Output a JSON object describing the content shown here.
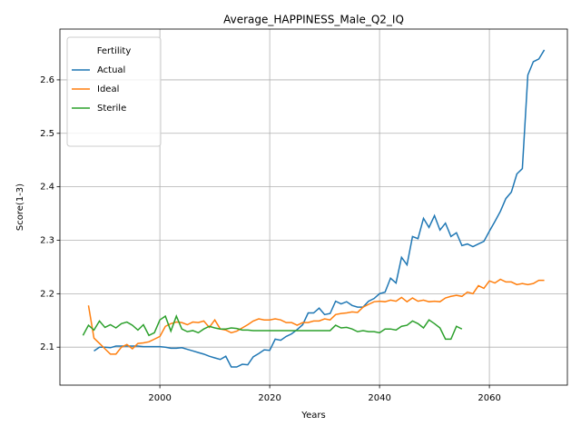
{
  "chart_data": {
    "type": "line",
    "title": "Average_HAPPINESS_Male_Q2_IQ",
    "xlabel": "Years",
    "ylabel": "Score(1-3)",
    "legend_title": "Fertility",
    "legend_loc": "upper left",
    "grid": true,
    "xlim": [
      1981.8,
      2074.2
    ],
    "ylim": [
      2.029,
      2.695
    ],
    "xticks": [
      2000,
      2020,
      2040,
      2060
    ],
    "yticks": [
      2.1,
      2.2,
      2.3,
      2.4,
      2.5,
      2.6
    ],
    "x": [
      1986,
      1987,
      1988,
      1989,
      1990,
      1991,
      1992,
      1993,
      1994,
      1995,
      1996,
      1997,
      1998,
      1999,
      2000,
      2001,
      2002,
      2003,
      2004,
      2005,
      2006,
      2007,
      2008,
      2009,
      2010,
      2011,
      2012,
      2013,
      2014,
      2015,
      2016,
      2017,
      2018,
      2019,
      2020,
      2021,
      2022,
      2023,
      2024,
      2025,
      2026,
      2027,
      2028,
      2029,
      2030,
      2031,
      2032,
      2033,
      2034,
      2035,
      2036,
      2037,
      2038,
      2039,
      2040,
      2041,
      2042,
      2043,
      2044,
      2045,
      2046,
      2047,
      2048,
      2049,
      2050,
      2051,
      2052,
      2053,
      2054,
      2055,
      2056,
      2057,
      2058,
      2059,
      2060,
      2061,
      2062,
      2063,
      2064,
      2065,
      2066,
      2067,
      2068,
      2069,
      2070
    ],
    "series": [
      {
        "name": "Actual",
        "color": "#1f77b4",
        "values": [
          null,
          null,
          2.093,
          2.1,
          2.1,
          2.099,
          2.102,
          2.102,
          2.102,
          2.102,
          2.102,
          2.101,
          2.101,
          2.101,
          2.101,
          2.1,
          2.098,
          2.098,
          2.099,
          2.096,
          2.093,
          2.09,
          2.087,
          2.083,
          2.08,
          2.077,
          2.083,
          2.063,
          2.063,
          2.068,
          2.067,
          2.082,
          2.088,
          2.095,
          2.094,
          2.115,
          2.113,
          2.12,
          2.125,
          2.133,
          2.142,
          2.164,
          2.164,
          2.173,
          2.161,
          2.163,
          2.186,
          2.181,
          2.185,
          2.178,
          2.175,
          2.175,
          2.186,
          2.191,
          2.2,
          2.203,
          2.229,
          2.22,
          2.268,
          2.254,
          2.307,
          2.303,
          2.341,
          2.324,
          2.346,
          2.319,
          2.332,
          2.307,
          2.314,
          2.29,
          2.293,
          2.288,
          2.293,
          2.298,
          2.317,
          2.335,
          2.354,
          2.378,
          2.39,
          2.424,
          2.434,
          2.609,
          2.634,
          2.639,
          2.656
        ]
      },
      {
        "name": "Ideal",
        "color": "#ff7f0e",
        "values": [
          null,
          2.178,
          2.117,
          2.107,
          2.097,
          2.087,
          2.087,
          2.1,
          2.105,
          2.097,
          2.107,
          2.108,
          2.11,
          2.115,
          2.12,
          2.139,
          2.144,
          2.147,
          2.146,
          2.142,
          2.147,
          2.146,
          2.149,
          2.137,
          2.151,
          2.134,
          2.132,
          2.127,
          2.13,
          2.136,
          2.142,
          2.149,
          2.153,
          2.151,
          2.151,
          2.153,
          2.151,
          2.146,
          2.146,
          2.141,
          2.146,
          2.146,
          2.149,
          2.149,
          2.153,
          2.151,
          2.161,
          2.163,
          2.164,
          2.166,
          2.165,
          2.175,
          2.18,
          2.185,
          2.186,
          2.185,
          2.188,
          2.186,
          2.193,
          2.185,
          2.192,
          2.186,
          2.188,
          2.185,
          2.186,
          2.185,
          2.192,
          2.195,
          2.197,
          2.195,
          2.203,
          2.2,
          2.215,
          2.21,
          2.224,
          2.22,
          2.227,
          2.222,
          2.222,
          2.217,
          2.219,
          2.217,
          2.219,
          2.225,
          2.225
        ]
      },
      {
        "name": "Sterile",
        "color": "#2ca02c",
        "values": [
          2.122,
          2.141,
          2.132,
          2.149,
          2.137,
          2.142,
          2.136,
          2.144,
          2.147,
          2.141,
          2.132,
          2.142,
          2.122,
          2.127,
          2.151,
          2.158,
          2.13,
          2.158,
          2.134,
          2.129,
          2.131,
          2.127,
          2.134,
          2.139,
          2.136,
          2.134,
          2.134,
          2.136,
          2.135,
          2.132,
          2.132,
          2.131,
          2.131,
          2.131,
          2.131,
          2.131,
          2.131,
          2.131,
          2.131,
          2.131,
          2.131,
          2.131,
          2.131,
          2.131,
          2.131,
          2.131,
          2.141,
          2.136,
          2.137,
          2.134,
          2.129,
          2.131,
          2.129,
          2.129,
          2.127,
          2.134,
          2.134,
          2.132,
          2.139,
          2.141,
          2.149,
          2.144,
          2.136,
          2.151,
          2.144,
          2.136,
          2.115,
          2.115,
          2.139,
          2.134,
          null,
          null,
          null,
          null,
          null,
          null,
          null,
          null,
          null,
          null,
          null,
          null,
          null,
          null,
          null
        ]
      }
    ]
  }
}
